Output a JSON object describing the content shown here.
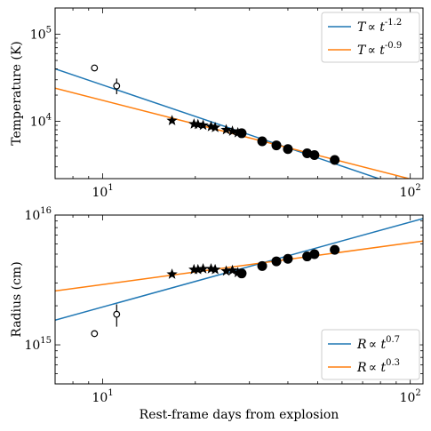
{
  "colors": {
    "blue": "#1f77b4",
    "orange": "#ff7f0e",
    "black": "#000000"
  },
  "chart_data": [
    {
      "type": "scatter",
      "xscale": "log",
      "yscale": "log",
      "xlim": [
        7,
        110
      ],
      "ylim": [
        2200,
        200000
      ],
      "xticks": [
        {
          "value": 10,
          "label": "10",
          "exp": "1"
        },
        {
          "value": 100,
          "label": "10",
          "exp": "2"
        }
      ],
      "yticks": [
        {
          "value": 10000,
          "label": "10",
          "exp": "4"
        },
        {
          "value": 100000,
          "label": "10",
          "exp": "5"
        }
      ],
      "ylabel": "Temperature (K)",
      "xlabel": "",
      "legend_position": "top-right",
      "legend": [
        {
          "color": "#1f77b4",
          "text": "T",
          "exp": "-1.2",
          "mid": "∝ t"
        },
        {
          "color": "#ff7f0e",
          "text": "T",
          "exp": "-0.9",
          "mid": "∝ t"
        }
      ],
      "fit_lines": [
        {
          "name": "T ∝ t^-1.2",
          "color": "#1f77b4",
          "points": [
            [
              7,
              40000
            ],
            [
              110,
              1480
            ]
          ]
        },
        {
          "name": "T ∝ t^-0.9",
          "color": "#ff7f0e",
          "points": [
            [
              7,
              24000
            ],
            [
              110,
              2000
            ]
          ]
        }
      ],
      "open_points": [
        {
          "x": 9.4,
          "y": 41000,
          "err_low": 39000,
          "err_high": 44000
        },
        {
          "x": 11.1,
          "y": 25500,
          "err_low": 20500,
          "err_high": 31000
        }
      ],
      "star_points": [
        {
          "x": 16.8,
          "y": 10200
        },
        {
          "x": 19.8,
          "y": 9300
        },
        {
          "x": 20.4,
          "y": 9200
        },
        {
          "x": 21.2,
          "y": 9000
        },
        {
          "x": 22.5,
          "y": 8700
        },
        {
          "x": 23.2,
          "y": 8500
        },
        {
          "x": 25.2,
          "y": 8000
        },
        {
          "x": 26.4,
          "y": 7700
        },
        {
          "x": 27.5,
          "y": 7400
        }
      ],
      "filled_points": [
        {
          "x": 28.3,
          "y": 7300
        },
        {
          "x": 33.0,
          "y": 5900
        },
        {
          "x": 36.7,
          "y": 5300
        },
        {
          "x": 40.0,
          "y": 4800
        },
        {
          "x": 46.2,
          "y": 4300
        },
        {
          "x": 48.8,
          "y": 4100
        },
        {
          "x": 56.8,
          "y": 3600
        }
      ]
    },
    {
      "type": "scatter",
      "xscale": "log",
      "yscale": "log",
      "xlim": [
        7,
        110
      ],
      "ylim": [
        500000000000000.0,
        1e+16
      ],
      "xticks": [
        {
          "value": 10,
          "label": "10",
          "exp": "1"
        },
        {
          "value": 100,
          "label": "10",
          "exp": "2"
        }
      ],
      "yticks": [
        {
          "value": 1000000000000000.0,
          "label": "10",
          "exp": "15"
        },
        {
          "value": 1e+16,
          "label": "10",
          "exp": "16"
        }
      ],
      "ylabel": "Radius (cm)",
      "xlabel": "Rest-frame days from explosion",
      "legend_position": "bottom-right",
      "legend": [
        {
          "color": "#1f77b4",
          "text": "R",
          "exp": "0.7",
          "mid": "∝ t"
        },
        {
          "color": "#ff7f0e",
          "text": "R",
          "exp": "0.3",
          "mid": "∝ t"
        }
      ],
      "fit_lines": [
        {
          "name": "R ∝ t^0.7",
          "color": "#1f77b4",
          "points": [
            [
              7,
              1550000000000000.0
            ],
            [
              110,
              9400000000000000.0
            ]
          ]
        },
        {
          "name": "R ∝ t^0.3",
          "color": "#ff7f0e",
          "points": [
            [
              7,
              2600000000000000.0
            ],
            [
              110,
              6300000000000000.0
            ]
          ]
        }
      ],
      "open_points": [
        {
          "x": 9.4,
          "y": 1220000000000000.0,
          "err_low": 1180000000000000.0,
          "err_high": 1260000000000000.0
        },
        {
          "x": 11.1,
          "y": 1720000000000000.0,
          "err_low": 1380000000000000.0,
          "err_high": 2050000000000000.0
        }
      ],
      "star_points": [
        {
          "x": 16.8,
          "y": 3500000000000000.0
        },
        {
          "x": 19.8,
          "y": 3800000000000000.0
        },
        {
          "x": 20.4,
          "y": 3800000000000000.0
        },
        {
          "x": 21.2,
          "y": 3850000000000000.0
        },
        {
          "x": 22.5,
          "y": 3850000000000000.0
        },
        {
          "x": 23.2,
          "y": 3800000000000000.0
        },
        {
          "x": 25.2,
          "y": 3700000000000000.0
        },
        {
          "x": 26.4,
          "y": 3750000000000000.0
        },
        {
          "x": 27.5,
          "y": 3600000000000000.0
        }
      ],
      "filled_points": [
        {
          "x": 28.3,
          "y": 3550000000000000.0
        },
        {
          "x": 33.0,
          "y": 4050000000000000.0
        },
        {
          "x": 36.7,
          "y": 4400000000000000.0
        },
        {
          "x": 40.0,
          "y": 4600000000000000.0
        },
        {
          "x": 46.2,
          "y": 4800000000000000.0
        },
        {
          "x": 48.8,
          "y": 5000000000000000.0
        },
        {
          "x": 56.8,
          "y": 5400000000000000.0
        }
      ]
    }
  ]
}
